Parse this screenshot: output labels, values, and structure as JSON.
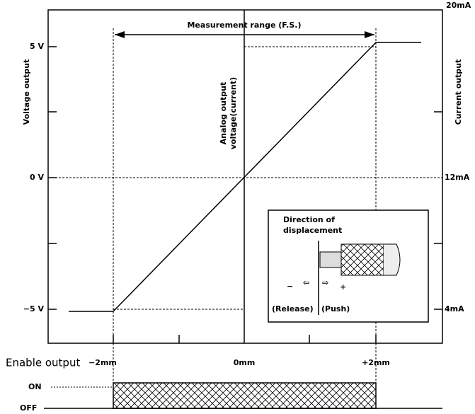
{
  "range_label": "Measurement range (F.S.)",
  "left_axis": {
    "label": "Voltage output",
    "ticks": [
      "5 V",
      "0 V",
      "−5 V"
    ]
  },
  "right_axis": {
    "label": "Current output",
    "ticks": [
      "20mA",
      "12mA",
      "4mA"
    ]
  },
  "center_label": [
    "Analog output",
    "voltage(current)"
  ],
  "bottom_axis": {
    "label": "Enable output",
    "ticks": [
      "−2mm",
      "0mm",
      "+2mm"
    ]
  },
  "enable_states": [
    "ON",
    "OFF"
  ],
  "inset": {
    "title": [
      "Direction of",
      "displacement"
    ],
    "minus": "−",
    "plus": "+",
    "release": "(Release)",
    "push": "(Push)"
  }
}
